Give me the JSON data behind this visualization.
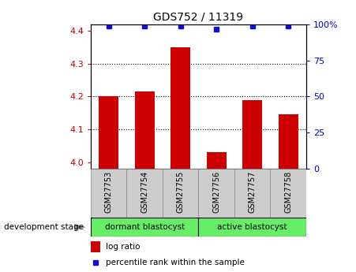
{
  "title": "GDS752 / 11319",
  "samples": [
    "GSM27753",
    "GSM27754",
    "GSM27755",
    "GSM27756",
    "GSM27757",
    "GSM27758"
  ],
  "log_ratios": [
    4.2,
    4.215,
    4.35,
    4.03,
    4.19,
    4.145
  ],
  "percentile_ranks": [
    99,
    99,
    99,
    97,
    99,
    99
  ],
  "ylim_left": [
    3.98,
    4.42
  ],
  "ylim_right": [
    0,
    100
  ],
  "yticks_left": [
    4.0,
    4.1,
    4.2,
    4.3,
    4.4
  ],
  "yticks_right": [
    0,
    25,
    50,
    75,
    100
  ],
  "bar_color": "#cc0000",
  "dot_color": "#1111cc",
  "group1_label": "dormant blastocyst",
  "group2_label": "active blastocyst",
  "group1_color": "#cccccc",
  "group2_color": "#66ee66",
  "group1_indices": [
    0,
    1,
    2
  ],
  "group2_indices": [
    3,
    4,
    5
  ],
  "stage_label": "development stage",
  "legend_bar_label": "log ratio",
  "legend_dot_label": "percentile rank within the sample",
  "bar_width": 0.55,
  "grid_color": "#000000",
  "axis_color_left": "#cc0000",
  "axis_color_right": "#0000cc",
  "xtick_bg_color": "#cccccc",
  "xtick_border_color": "#888888"
}
